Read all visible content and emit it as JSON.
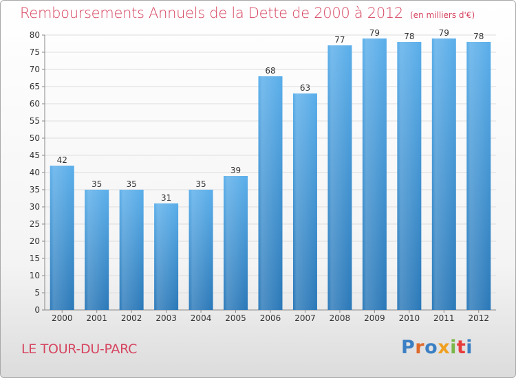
{
  "header": {
    "title": "Remboursements Annuels de la Dette de 2000 à 2012",
    "unit": "(en milliers d'€)"
  },
  "footer": {
    "commune": "LE TOUR-DU-PARC",
    "logo_text": "Proxiti"
  },
  "colors": {
    "title": "#d64560",
    "bar_top": "#5aaeea",
    "bar_bottom": "#2a78b8",
    "grid": "#dddddd",
    "logo_letters": [
      "#3a7fc4",
      "#e06a2c",
      "#3a7fc4",
      "#f0a020",
      "#7ab648",
      "#e83c3c",
      "#3a7fc4"
    ]
  },
  "chart_data": {
    "type": "bar",
    "title": "Remboursements Annuels de la Dette de 2000 à 2012",
    "subtitle": "(en milliers d'€)",
    "xlabel": "",
    "ylabel": "",
    "categories": [
      "2000",
      "2001",
      "2002",
      "2003",
      "2004",
      "2005",
      "2006",
      "2007",
      "2008",
      "2009",
      "2010",
      "2011",
      "2012"
    ],
    "values": [
      42,
      35,
      35,
      31,
      35,
      39,
      68,
      63,
      77,
      79,
      78,
      79,
      78
    ],
    "ylim": [
      0,
      80
    ],
    "y_ticks": [
      0,
      5,
      10,
      15,
      20,
      25,
      30,
      35,
      40,
      45,
      50,
      55,
      60,
      65,
      70,
      75,
      80
    ],
    "grid": true,
    "legend": "none"
  }
}
